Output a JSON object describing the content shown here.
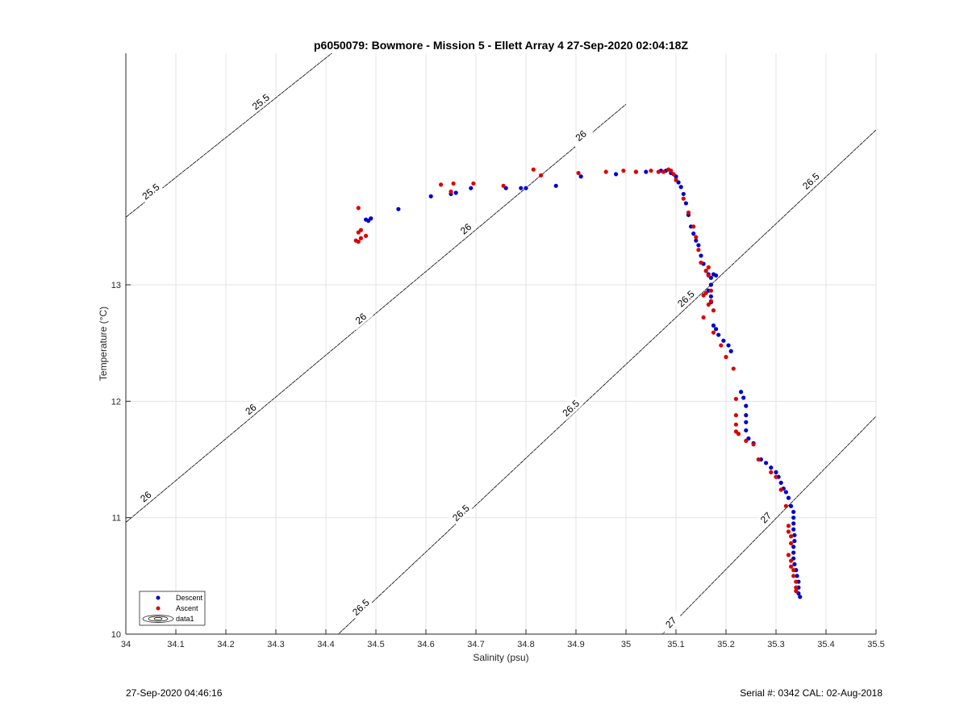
{
  "footer": {
    "timestamp": "27-Sep-2020 04:46:16",
    "serial": "Serial #: 0342  CAL: 02-Aug-2018"
  },
  "chart_data": {
    "type": "scatter",
    "title": "p6050079: Bowmore - Mission 5 - Ellett Array 4 27-Sep-2020 02:04:18Z",
    "xlabel": "Salinity (psu)",
    "ylabel": "Temperature (°C)",
    "xlim": [
      34,
      35.5
    ],
    "ylim": [
      10,
      15
    ],
    "xticks": [
      34,
      34.1,
      34.2,
      34.3,
      34.4,
      34.5,
      34.6,
      34.7,
      34.8,
      34.9,
      35,
      35.1,
      35.2,
      35.3,
      35.4,
      35.5
    ],
    "xtick_labels": [
      "34",
      "34.1",
      "34.2",
      "34.3",
      "34.4",
      "34.5",
      "34.6",
      "34.7",
      "34.8",
      "34.9",
      "35",
      "35.1",
      "35.2",
      "35.3",
      "35.4",
      "35.5"
    ],
    "yticks": [
      10,
      11,
      12,
      13
    ],
    "ytick_labels": [
      "10",
      "11",
      "12",
      "13"
    ],
    "grid": true,
    "legend": {
      "placement": "bottom-left",
      "entries": [
        "Descent",
        "Ascent",
        "data1"
      ]
    },
    "colors": {
      "descent": "#0000cc",
      "ascent": "#dd0000",
      "contour": "#000000",
      "grid": "#e3e3e3"
    },
    "density_contours": [
      {
        "level": "25.5",
        "points": [
          [
            34.0,
            13.58
          ],
          [
            35.0,
            17.0
          ]
        ],
        "labels": [
          {
            "text": "25.5",
            "x": 34.05,
            "y": 13.8
          },
          {
            "text": "25.5",
            "x": 34.27,
            "y": 14.57
          }
        ]
      },
      {
        "level": "26",
        "points": [
          [
            34.0,
            10.96
          ],
          [
            35.0,
            14.55
          ]
        ],
        "labels": [
          {
            "text": "26",
            "x": 34.04,
            "y": 11.18
          },
          {
            "text": "26",
            "x": 34.25,
            "y": 11.93
          },
          {
            "text": "26",
            "x": 34.47,
            "y": 12.71
          },
          {
            "text": "26",
            "x": 34.68,
            "y": 13.48
          },
          {
            "text": "26",
            "x": 34.91,
            "y": 14.28
          }
        ]
      },
      {
        "level": "26.5",
        "points": [
          [
            34.4,
            9.9
          ],
          [
            35.5,
            14.33
          ]
        ],
        "labels": [
          {
            "text": "26.5",
            "x": 34.47,
            "y": 10.23
          },
          {
            "text": "26.5",
            "x": 34.67,
            "y": 11.04
          },
          {
            "text": "26.5",
            "x": 34.89,
            "y": 11.94
          },
          {
            "text": "26.5",
            "x": 35.12,
            "y": 12.88
          },
          {
            "text": "26.5",
            "x": 35.37,
            "y": 13.89
          }
        ]
      },
      {
        "level": "27",
        "points": [
          [
            35.05,
            9.9
          ],
          [
            35.5,
            11.87
          ]
        ],
        "labels": [
          {
            "text": "27",
            "x": 35.09,
            "y": 10.1
          },
          {
            "text": "27",
            "x": 35.28,
            "y": 11.0
          }
        ]
      }
    ],
    "series": [
      {
        "name": "Descent",
        "points": [
          [
            34.48,
            13.56
          ],
          [
            34.49,
            13.57
          ],
          [
            34.485,
            13.55
          ],
          [
            34.545,
            13.65
          ],
          [
            34.61,
            13.76
          ],
          [
            34.65,
            13.78
          ],
          [
            34.66,
            13.79
          ],
          [
            34.69,
            13.83
          ],
          [
            34.76,
            13.83
          ],
          [
            34.79,
            13.83
          ],
          [
            34.8,
            13.83
          ],
          [
            34.86,
            13.85
          ],
          [
            34.91,
            13.93
          ],
          [
            34.98,
            13.95
          ],
          [
            35.02,
            13.97
          ],
          [
            35.04,
            13.97
          ],
          [
            35.07,
            13.98
          ],
          [
            35.08,
            13.98
          ],
          [
            35.09,
            13.96
          ],
          [
            35.1,
            13.93
          ],
          [
            35.105,
            13.88
          ],
          [
            35.11,
            13.84
          ],
          [
            35.115,
            13.78
          ],
          [
            35.12,
            13.7
          ],
          [
            35.125,
            13.6
          ],
          [
            35.13,
            13.5
          ],
          [
            35.135,
            13.44
          ],
          [
            35.14,
            13.38
          ],
          [
            35.145,
            13.34
          ],
          [
            35.15,
            13.25
          ],
          [
            35.155,
            13.18
          ],
          [
            35.16,
            13.12
          ],
          [
            35.165,
            13.09
          ],
          [
            35.17,
            13.06
          ],
          [
            35.175,
            13.09
          ],
          [
            35.18,
            13.08
          ],
          [
            35.17,
            13.0
          ],
          [
            35.165,
            12.95
          ],
          [
            35.17,
            12.9
          ],
          [
            35.17,
            12.85
          ],
          [
            35.175,
            12.65
          ],
          [
            35.18,
            12.62
          ],
          [
            35.185,
            12.57
          ],
          [
            35.195,
            12.52
          ],
          [
            35.205,
            12.48
          ],
          [
            35.21,
            12.43
          ],
          [
            35.23,
            12.08
          ],
          [
            35.235,
            12.03
          ],
          [
            35.24,
            11.96
          ],
          [
            35.24,
            11.88
          ],
          [
            35.24,
            11.82
          ],
          [
            35.24,
            11.75
          ],
          [
            35.245,
            11.68
          ],
          [
            35.255,
            11.64
          ],
          [
            35.27,
            11.5
          ],
          [
            35.28,
            11.47
          ],
          [
            35.29,
            11.43
          ],
          [
            35.3,
            11.39
          ],
          [
            35.305,
            11.35
          ],
          [
            35.31,
            11.3
          ],
          [
            35.315,
            11.25
          ],
          [
            35.32,
            11.22
          ],
          [
            35.325,
            11.17
          ],
          [
            35.33,
            11.1
          ],
          [
            35.335,
            11.05
          ],
          [
            35.335,
            11.0
          ],
          [
            35.335,
            10.95
          ],
          [
            35.335,
            10.9
          ],
          [
            35.337,
            10.85
          ],
          [
            35.337,
            10.8
          ],
          [
            35.335,
            10.75
          ],
          [
            35.335,
            10.7
          ],
          [
            35.335,
            10.65
          ],
          [
            35.337,
            10.6
          ],
          [
            35.34,
            10.55
          ],
          [
            35.342,
            10.5
          ],
          [
            35.345,
            10.45
          ],
          [
            35.345,
            10.4
          ],
          [
            35.345,
            10.35
          ],
          [
            35.348,
            10.32
          ]
        ]
      },
      {
        "name": "Ascent",
        "points": [
          [
            34.46,
            13.38
          ],
          [
            34.465,
            13.37
          ],
          [
            34.47,
            13.4
          ],
          [
            34.465,
            13.45
          ],
          [
            34.47,
            13.47
          ],
          [
            34.48,
            13.42
          ],
          [
            34.465,
            13.66
          ],
          [
            34.63,
            13.86
          ],
          [
            34.65,
            13.8
          ],
          [
            34.655,
            13.87
          ],
          [
            34.695,
            13.87
          ],
          [
            34.755,
            13.85
          ],
          [
            34.815,
            13.99
          ],
          [
            34.83,
            13.94
          ],
          [
            34.905,
            13.96
          ],
          [
            34.96,
            13.97
          ],
          [
            34.995,
            13.98
          ],
          [
            35.02,
            13.97
          ],
          [
            35.05,
            13.98
          ],
          [
            35.065,
            13.97
          ],
          [
            35.075,
            13.97
          ],
          [
            35.085,
            13.99
          ],
          [
            35.09,
            13.98
          ],
          [
            35.095,
            13.95
          ],
          [
            35.1,
            13.9
          ],
          [
            35.115,
            13.74
          ],
          [
            35.125,
            13.62
          ],
          [
            35.135,
            13.5
          ],
          [
            35.14,
            13.41
          ],
          [
            35.145,
            13.3
          ],
          [
            35.15,
            13.19
          ],
          [
            35.16,
            13.12
          ],
          [
            35.165,
            13.15
          ],
          [
            35.165,
            13.08
          ],
          [
            35.17,
            12.95
          ],
          [
            35.16,
            12.93
          ],
          [
            35.155,
            12.91
          ],
          [
            35.17,
            12.86
          ],
          [
            35.165,
            12.83
          ],
          [
            35.175,
            12.78
          ],
          [
            35.155,
            12.72
          ],
          [
            35.175,
            12.59
          ],
          [
            35.19,
            12.48
          ],
          [
            35.2,
            12.38
          ],
          [
            35.215,
            12.28
          ],
          [
            35.22,
            12.02
          ],
          [
            35.22,
            11.88
          ],
          [
            35.22,
            11.8
          ],
          [
            35.22,
            11.74
          ],
          [
            35.225,
            11.72
          ],
          [
            35.24,
            11.66
          ],
          [
            35.255,
            11.63
          ],
          [
            35.265,
            11.5
          ],
          [
            35.29,
            11.39
          ],
          [
            35.3,
            11.35
          ],
          [
            35.31,
            11.24
          ],
          [
            35.32,
            11.1
          ],
          [
            35.325,
            10.93
          ],
          [
            35.325,
            10.88
          ],
          [
            35.33,
            10.84
          ],
          [
            35.33,
            10.78
          ],
          [
            35.325,
            10.68
          ],
          [
            35.33,
            10.63
          ],
          [
            35.33,
            10.58
          ],
          [
            35.335,
            10.55
          ],
          [
            35.335,
            10.5
          ],
          [
            35.34,
            10.45
          ],
          [
            35.34,
            10.4
          ],
          [
            35.34,
            10.37
          ]
        ]
      }
    ]
  }
}
